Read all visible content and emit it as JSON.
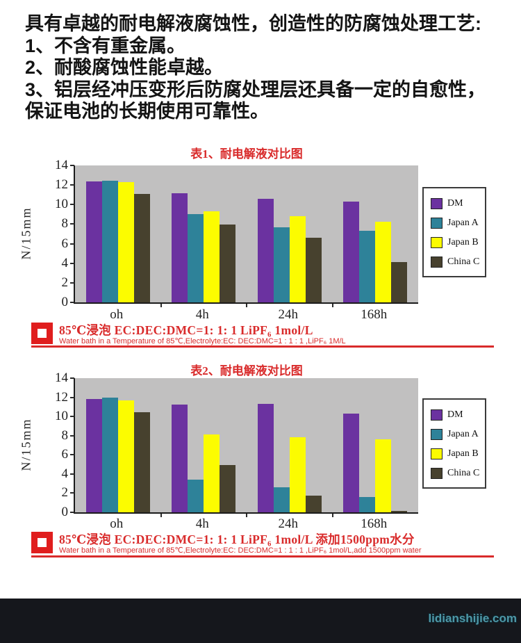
{
  "intro": {
    "lines": [
      "具有卓越的耐电解液腐蚀性，创造性的防腐蚀处理工艺:",
      "1、不含有重金属。",
      "2、耐酸腐蚀性能卓越。",
      "3、铝层经冲压变形后防腐处理层还具备一定的自愈性，",
      "保证电池的长期使用可靠性。"
    ]
  },
  "chart_data": [
    {
      "type": "bar",
      "title": "表1、耐电解液对比图",
      "ylabel": "N/15mm",
      "xlabel": "",
      "categories": [
        "oh",
        "4h",
        "24h",
        "168h"
      ],
      "series": [
        {
          "name": "DM",
          "color": "#6B32A0",
          "values": [
            12.4,
            11.15,
            10.6,
            10.3
          ]
        },
        {
          "name": "Japan A",
          "color": "#2E8299",
          "values": [
            12.45,
            9.0,
            7.7,
            7.3
          ]
        },
        {
          "name": "Japan B",
          "color": "#FCFC00",
          "values": [
            12.3,
            9.3,
            8.8,
            8.25
          ]
        },
        {
          "name": "China C",
          "color": "#47412E",
          "values": [
            11.1,
            7.95,
            6.6,
            4.1
          ]
        }
      ],
      "ylim": [
        0,
        14
      ],
      "yticks": [
        0,
        2,
        4,
        6,
        8,
        10,
        12,
        14
      ],
      "legend_position": "right",
      "grid": false,
      "plot_background": "#C1C0C0",
      "caption_cn": "85℃浸泡  EC:DEC:DMC=1: 1: 1  LiPF₆  1mol/L",
      "caption_en": "Water bath in a Temperature of 85℃,Electrolyte:EC: DEC:DMC=1 : 1 : 1 ,LiPF₆ 1M/L"
    },
    {
      "type": "bar",
      "title": "表2、耐电解液对比图",
      "ylabel": "N/15mm",
      "xlabel": "",
      "categories": [
        "oh",
        "4h",
        "24h",
        "168h"
      ],
      "series": [
        {
          "name": "DM",
          "color": "#6B32A0",
          "values": [
            11.8,
            11.25,
            11.3,
            10.3
          ]
        },
        {
          "name": "Japan A",
          "color": "#2E8299",
          "values": [
            12.0,
            3.4,
            2.6,
            1.6
          ]
        },
        {
          "name": "Japan B",
          "color": "#FCFC00",
          "values": [
            11.7,
            8.1,
            7.8,
            7.6
          ]
        },
        {
          "name": "China C",
          "color": "#47412E",
          "values": [
            10.45,
            4.9,
            1.75,
            0.15
          ]
        }
      ],
      "ylim": [
        0,
        14
      ],
      "yticks": [
        0,
        2,
        4,
        6,
        8,
        10,
        12,
        14
      ],
      "legend_position": "right",
      "grid": false,
      "plot_background": "#C1C0C0",
      "caption_cn": "85℃浸泡  EC:DEC:DMC=1: 1: 1  LiPF₆  1mol/L  添加1500ppm水分",
      "caption_en": "Water bath in a Temperature of 85℃,Electrolyte:EC: DEC:DMC=1 : 1 : 1 ,LiPF₆ 1mol/L,add 1500ppm water"
    }
  ],
  "footer": {
    "watermark": "lidianshijie.com"
  },
  "colors": {
    "accent_red": "#D92B2B",
    "bullet_red": "#E01E1E",
    "plot_background": "#C1C0C0",
    "footer_background": "#15171C",
    "watermark_teal": "#4F97A6",
    "bar_dm": "#6B32A0",
    "bar_japan_a": "#2E8299",
    "bar_japan_b": "#FCFC00",
    "bar_china_c": "#47412E"
  }
}
